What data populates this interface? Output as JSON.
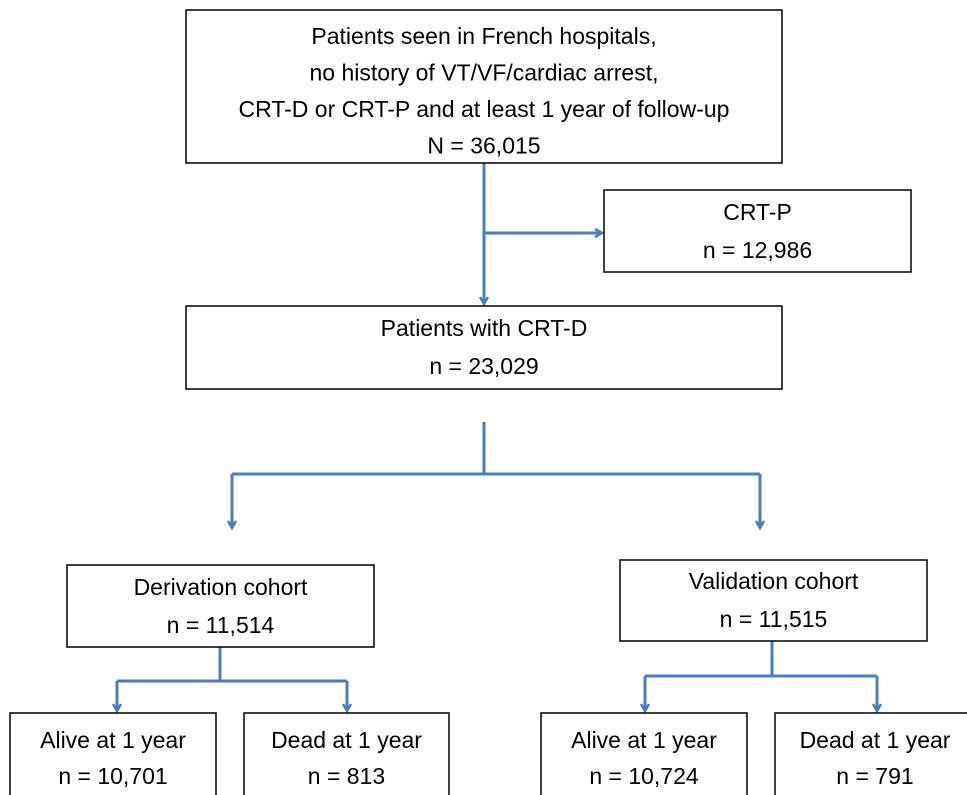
{
  "nodes": [
    {
      "lines": [
        "Patients seen in French hospitals,",
        "no history of VT/VF/cardiac arrest,",
        "CRT-D or CRT-P and at least 1 year of follow-up",
        "N = 36,015"
      ]
    },
    {
      "lines": [
        "CRT-P",
        "n = 12,986"
      ]
    },
    {
      "lines": [
        "Patients with CRT-D",
        "n = 23,029"
      ]
    },
    {
      "lines": [
        "Derivation cohort",
        "n = 11,514"
      ]
    },
    {
      "lines": [
        "Validation cohort",
        "n = 11,515"
      ]
    },
    {
      "lines": [
        "Alive at 1 year",
        "n = 10,701"
      ]
    },
    {
      "lines": [
        "Dead at 1 year",
        "n = 813"
      ]
    },
    {
      "lines": [
        "Alive at 1 year",
        "n = 10,724"
      ]
    },
    {
      "lines": [
        "Dead at 1 year",
        "n = 791"
      ]
    }
  ]
}
